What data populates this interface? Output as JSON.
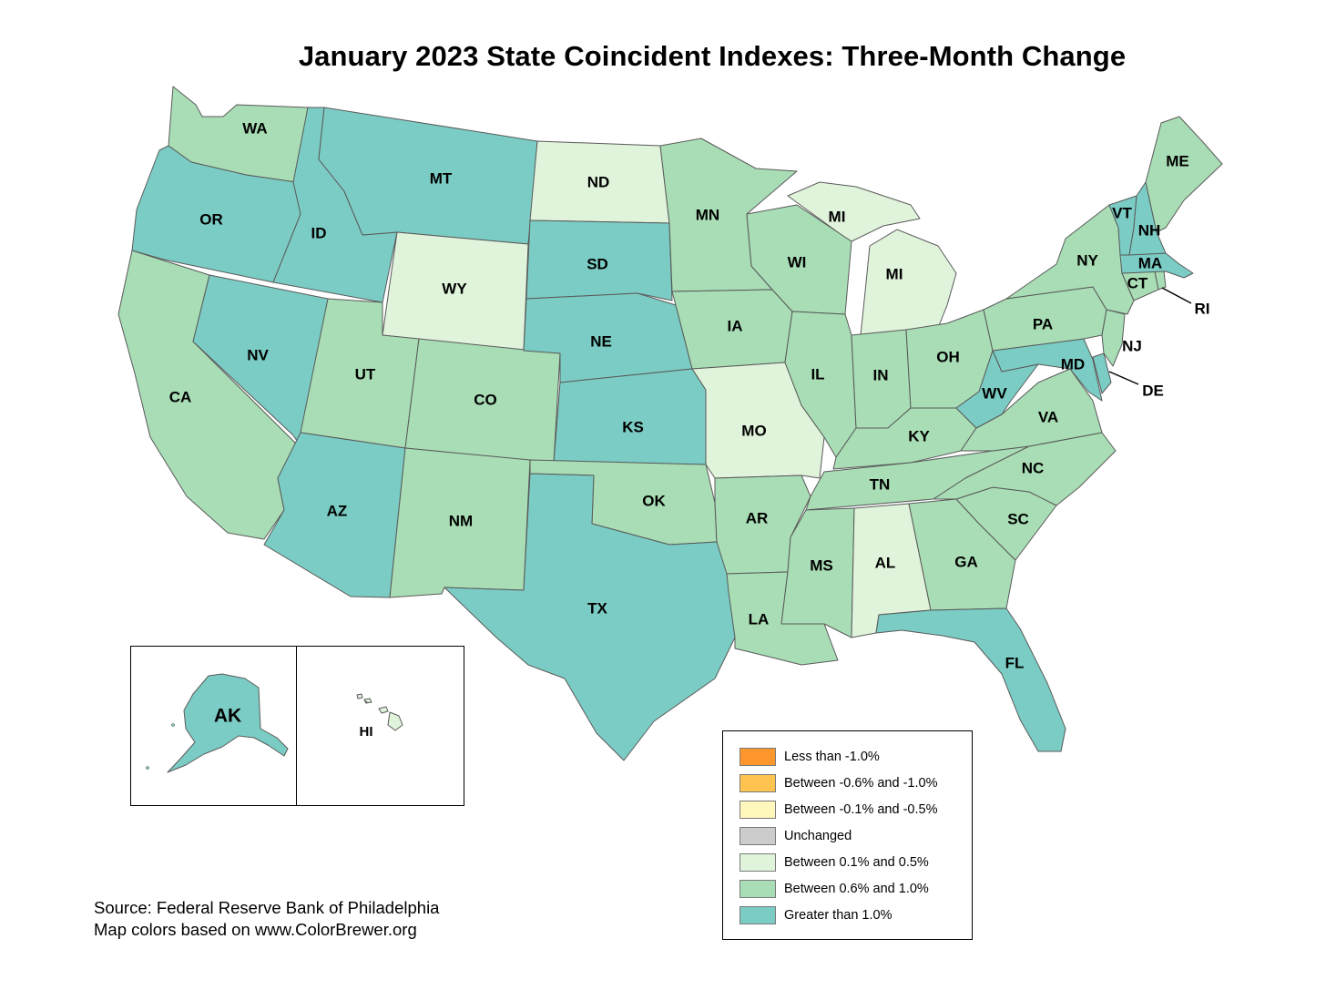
{
  "title": "January 2023 State Coincident Indexes: Three-Month Change",
  "colors": {
    "less_than_neg1": "#fd962c",
    "neg06_neg1": "#fec44f",
    "neg01_neg05": "#fff7bc",
    "unchanged": "#cccccc",
    "pos01_05": "#e0f3db",
    "pos06_10": "#a8ddb5",
    "gt_10": "#7bccc4"
  },
  "legend": [
    {
      "label": "Less than -1.0%",
      "color": "#fd962c"
    },
    {
      "label": "Between -0.6% and -1.0%",
      "color": "#fec44f"
    },
    {
      "label": "Between -0.1% and -0.5%",
      "color": "#fff7bc"
    },
    {
      "label": "Unchanged",
      "color": "#cccccc"
    },
    {
      "label": "Between 0.1% and 0.5%",
      "color": "#e0f3db"
    },
    {
      "label": "Between 0.6% and 1.0%",
      "color": "#a8ddb5"
    },
    {
      "label": "Greater than 1.0%",
      "color": "#7bccc4"
    }
  ],
  "states": {
    "WA": "Between 0.6% and 1.0%",
    "OR": "Greater than 1.0%",
    "CA": "Between 0.6% and 1.0%",
    "ID": "Greater than 1.0%",
    "NV": "Greater than 1.0%",
    "MT": "Greater than 1.0%",
    "WY": "Between 0.1% and 0.5%",
    "UT": "Between 0.6% and 1.0%",
    "AZ": "Greater than 1.0%",
    "CO": "Between 0.6% and 1.0%",
    "NM": "Between 0.6% and 1.0%",
    "ND": "Between 0.1% and 0.5%",
    "SD": "Greater than 1.0%",
    "NE": "Greater than 1.0%",
    "KS": "Greater than 1.0%",
    "OK": "Between 0.6% and 1.0%",
    "TX": "Greater than 1.0%",
    "MN": "Between 0.6% and 1.0%",
    "IA": "Between 0.6% and 1.0%",
    "MO": "Between 0.1% and 0.5%",
    "AR": "Between 0.6% and 1.0%",
    "LA": "Between 0.6% and 1.0%",
    "WI": "Between 0.6% and 1.0%",
    "IL": "Between 0.6% and 1.0%",
    "MI": "Between 0.1% and 0.5%",
    "IN": "Between 0.6% and 1.0%",
    "OH": "Between 0.6% and 1.0%",
    "KY": "Between 0.6% and 1.0%",
    "TN": "Between 0.6% and 1.0%",
    "MS": "Between 0.6% and 1.0%",
    "AL": "Between 0.1% and 0.5%",
    "GA": "Between 0.6% and 1.0%",
    "FL": "Greater than 1.0%",
    "SC": "Between 0.6% and 1.0%",
    "NC": "Between 0.6% and 1.0%",
    "VA": "Between 0.6% and 1.0%",
    "WV": "Greater than 1.0%",
    "MD": "Greater than 1.0%",
    "DE": "Greater than 1.0%",
    "PA": "Between 0.6% and 1.0%",
    "NJ": "Between 0.6% and 1.0%",
    "NY": "Between 0.6% and 1.0%",
    "CT": "Between 0.6% and 1.0%",
    "RI": "Between 0.6% and 1.0%",
    "MA": "Greater than 1.0%",
    "VT": "Greater than 1.0%",
    "NH": "Greater than 1.0%",
    "ME": "Between 0.6% and 1.0%",
    "AK": "Greater than 1.0%",
    "HI": "Between 0.1% and 0.5%"
  },
  "labels": {
    "WA": "WA",
    "OR": "OR",
    "CA": "CA",
    "ID": "ID",
    "NV": "NV",
    "MT": "MT",
    "WY": "WY",
    "UT": "UT",
    "AZ": "AZ",
    "CO": "CO",
    "NM": "NM",
    "ND": "ND",
    "SD": "SD",
    "NE": "NE",
    "KS": "KS",
    "OK": "OK",
    "TX": "TX",
    "MN": "MN",
    "IA": "IA",
    "MO": "MO",
    "AR": "AR",
    "LA": "LA",
    "WI": "WI",
    "IL": "IL",
    "MI_UP": "MI",
    "MI": "MI",
    "IN": "IN",
    "OH": "OH",
    "KY": "KY",
    "TN": "TN",
    "MS": "MS",
    "AL": "AL",
    "GA": "GA",
    "FL": "FL",
    "SC": "SC",
    "NC": "NC",
    "VA": "VA",
    "WV": "WV",
    "MD": "MD",
    "DE": "DE",
    "PA": "PA",
    "NJ": "NJ",
    "NY": "NY",
    "CT": "CT",
    "RI": "RI",
    "MA": "MA",
    "VT": "VT",
    "NH": "NH",
    "ME": "ME",
    "AK": "AK",
    "HI": "HI"
  },
  "source_line1": "Source: Federal Reserve Bank of Philadelphia",
  "source_line2": "Map colors based on www.ColorBrewer.org"
}
